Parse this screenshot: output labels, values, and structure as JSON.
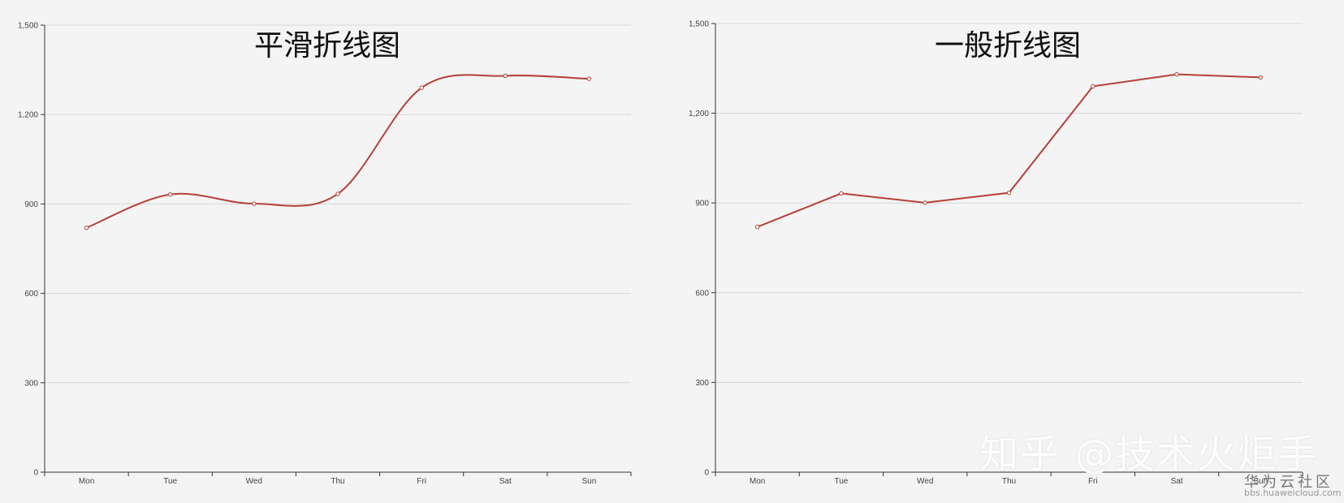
{
  "chart_data": [
    {
      "type": "line",
      "smooth": true,
      "title": "平滑折线图",
      "categories": [
        "Mon",
        "Tue",
        "Wed",
        "Thu",
        "Fri",
        "Sat",
        "Sun"
      ],
      "series": [
        {
          "values": [
            820,
            932,
            901,
            934,
            1290,
            1330,
            1320
          ]
        }
      ],
      "yticks": [
        "0",
        "300",
        "600",
        "900",
        "1,200",
        "1,500"
      ],
      "ylim": [
        0,
        1500
      ],
      "grid": true,
      "line_color": "#b5403a"
    },
    {
      "type": "line",
      "smooth": false,
      "title": "一般折线图",
      "categories": [
        "Mon",
        "Tue",
        "Wed",
        "Thu",
        "Fri",
        "Sat",
        "Sun"
      ],
      "series": [
        {
          "values": [
            820,
            932,
            901,
            934,
            1290,
            1330,
            1320
          ]
        }
      ],
      "yticks": [
        "0",
        "300",
        "600",
        "900",
        "1,200",
        "1,500"
      ],
      "ylim": [
        0,
        1500
      ],
      "grid": true,
      "line_color": "#b5403a"
    }
  ],
  "watermark": {
    "main": "知乎 @技术火炬手",
    "site": "华为云社区",
    "url": "bbs.huaweicloud.com"
  }
}
